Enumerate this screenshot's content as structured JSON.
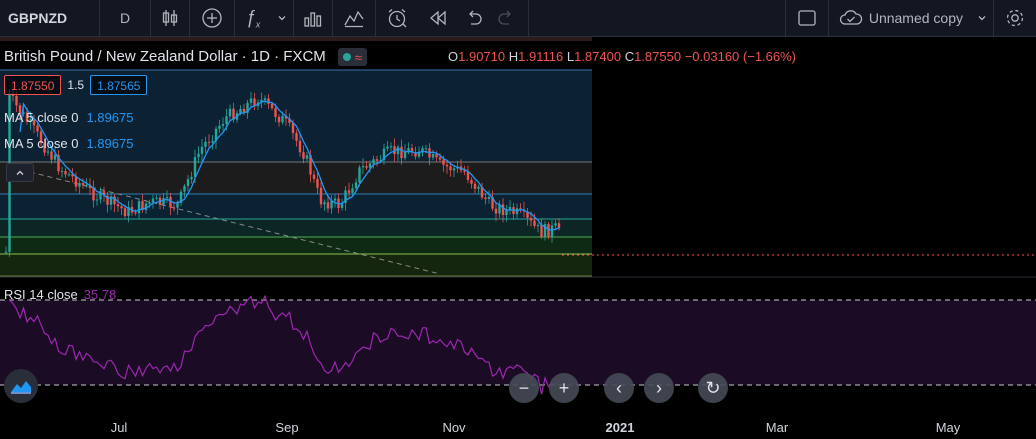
{
  "toolbar": {
    "symbol": "GBPNZD",
    "interval": "D",
    "layout_name": "Unnamed copy",
    "icons": [
      "bar-style-icon",
      "add-compare-icon",
      "indicators-icon",
      "chevron-down-icon",
      "templates-icon",
      "alert-icon",
      "replay-icon",
      "undo-icon",
      "redo-icon",
      "fullscreen-icon",
      "cloud-icon",
      "settings-icon"
    ]
  },
  "legend": {
    "title": "British Pound / New Zealand Dollar · 1D · FXCM",
    "o_label": "O",
    "o": "1.90710",
    "h_label": "H",
    "h": "1.91116",
    "l_label": "L",
    "l": "1.87400",
    "c_label": "C",
    "c": "1.87550",
    "change": "−0.03160 (−1.66%)",
    "sell_price": "1.87550",
    "spread": "1.5",
    "buy_price": "1.87565",
    "ma1_label": "MA 5 close 0",
    "ma1_value": "1.89675",
    "ma2_label": "MA 5 close 0",
    "ma2_value": "1.89675",
    "rsi_label": "RSI 14 close",
    "rsi_value": "35.78"
  },
  "time_axis": {
    "labels": [
      {
        "text": "Jul",
        "bold": false
      },
      {
        "text": "Sep",
        "bold": false
      },
      {
        "text": "Nov",
        "bold": false
      },
      {
        "text": "2021",
        "bold": true
      },
      {
        "text": "Mar",
        "bold": false
      },
      {
        "text": "May",
        "bold": false
      }
    ]
  },
  "colors": {
    "up": "#26a69a",
    "down": "#ef5350",
    "ma": "#2196f3",
    "rsi": "#9c27b0",
    "toolbar_bg": "#131722"
  },
  "controls": {
    "zoom_out": "−",
    "zoom_in": "+",
    "scroll_left": "‹",
    "scroll_right": "›",
    "reset": "↻"
  }
}
